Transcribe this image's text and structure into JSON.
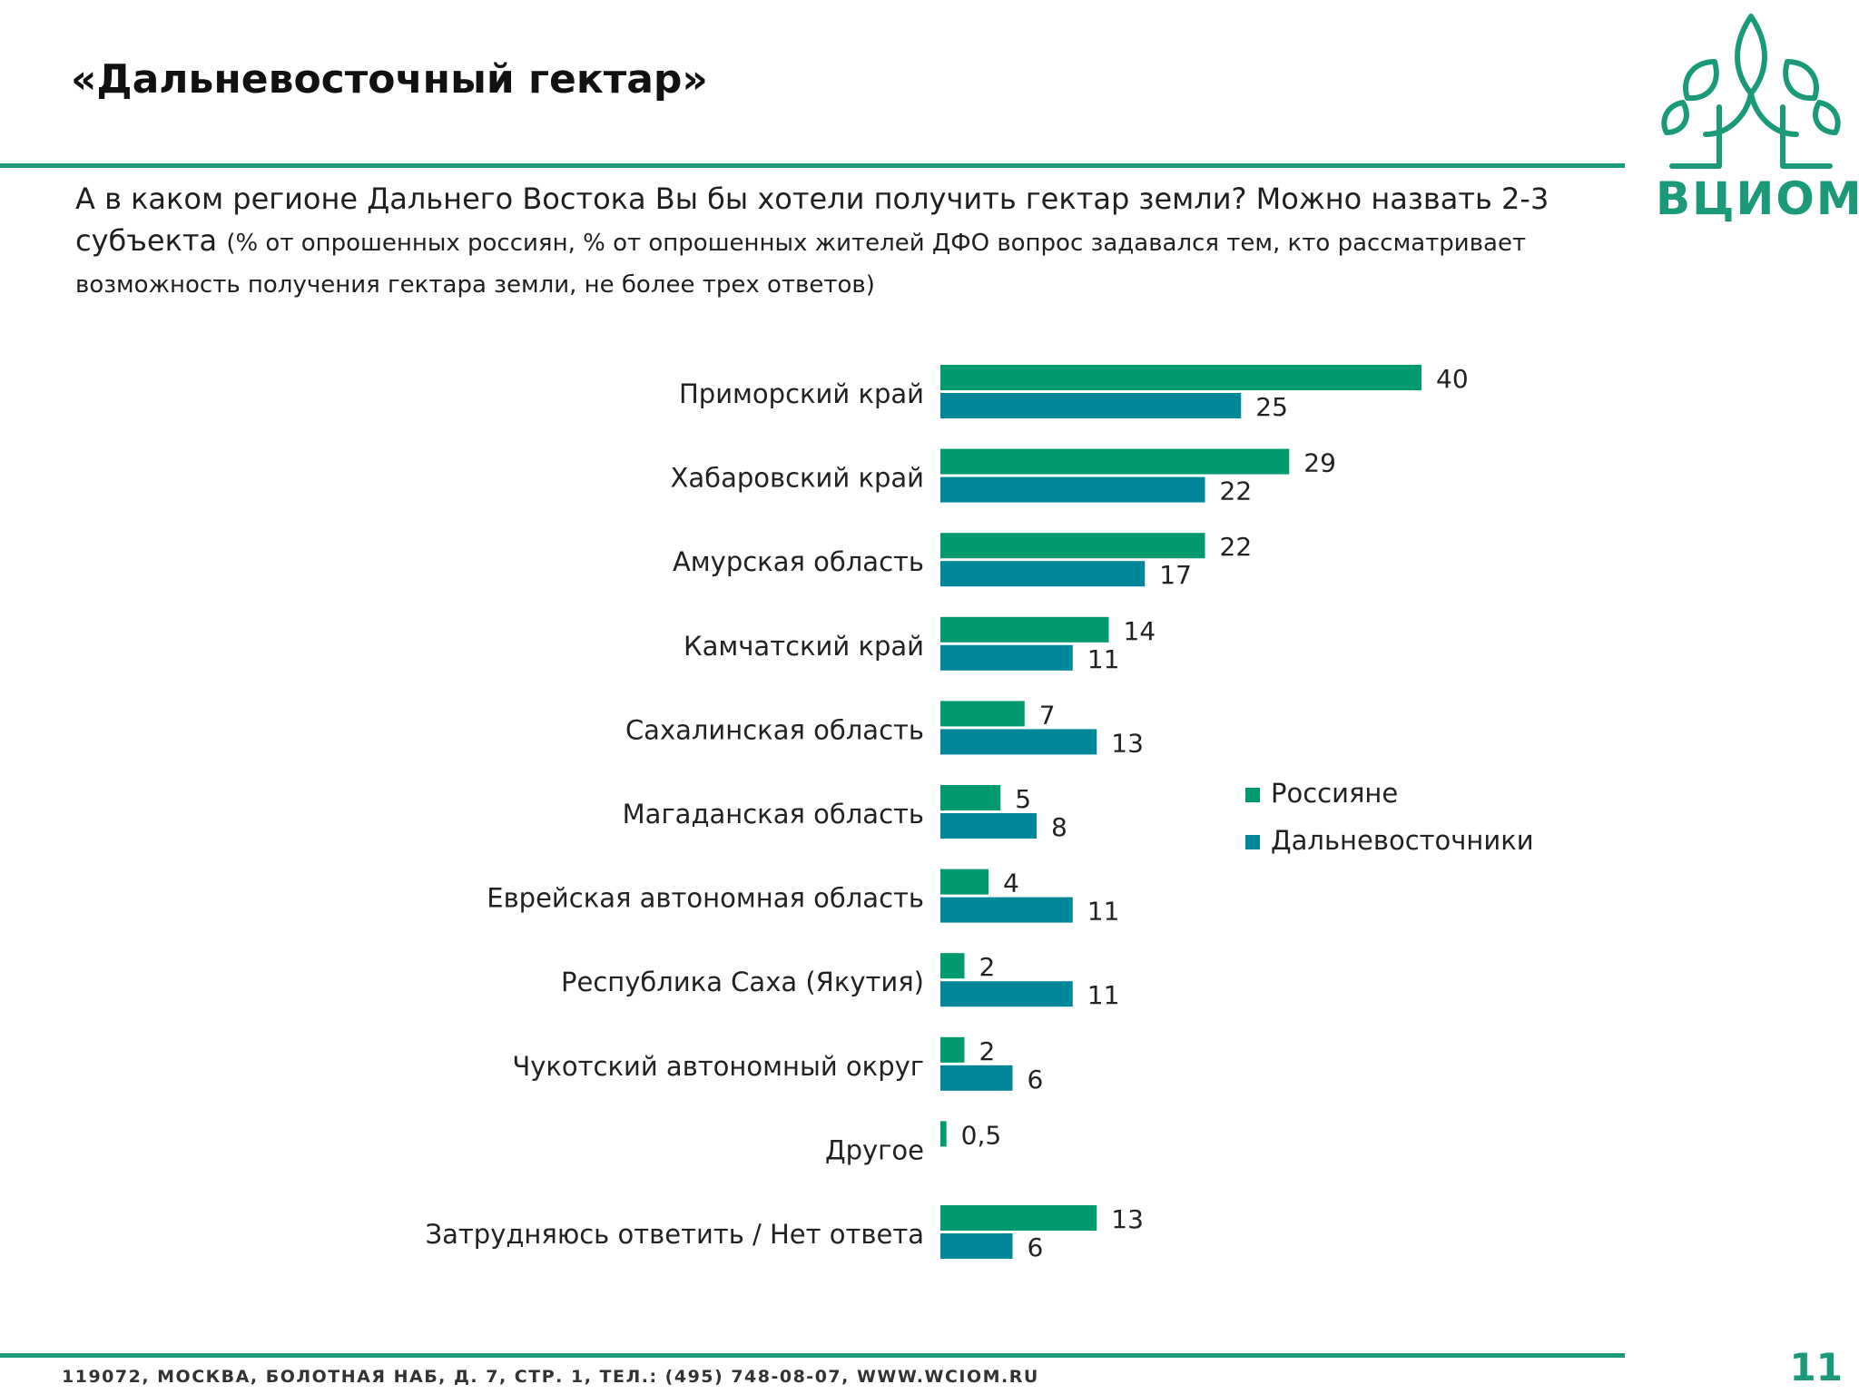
{
  "slide": {
    "title": "«Дальневосточный гектар»",
    "question_main": "А в каком регионе Дальнего Востока Вы бы хотели получить гектар земли? Можно назвать 2-3 субъекта ",
    "question_note": "(% от опрошенных россиян, % от опрошенных жителей ДФО вопрос задавался тем, кто рассматривает возможность получения гектара земли, не более трех ответов)",
    "footer": "119072, МОСКВА, БОЛОТНАЯ НАБ, Д. 7, СТР. 1, ТЕЛ.: (495) 748-08-07,  WWW.WCIOM.RU",
    "page_number": "11"
  },
  "logo": {
    "text": "ВЦИОМ",
    "icon": "tree-leaves-icon"
  },
  "colors": {
    "green": "#009a6e",
    "teal": "#00879a",
    "accent": "#1a9a78"
  },
  "chart_data": {
    "type": "bar",
    "orientation": "horizontal",
    "title": "А в каком регионе Дальнего Востока Вы бы хотели получить гектар земли?",
    "xlim": [
      0,
      40
    ],
    "grid": false,
    "legend_position": "right",
    "categories": [
      "Приморский край",
      "Хабаровский край",
      "Амурская область",
      "Камчатский край",
      "Сахалинская область",
      "Магаданская область",
      "Еврейская автономная область",
      "Республика Саха (Якутия)",
      "Чукотский автономный округ",
      "Другое",
      "Затрудняюсь ответить / Нет ответа"
    ],
    "series": [
      {
        "name": "Россияне",
        "color": "#009a6e",
        "values": [
          40,
          29,
          22,
          14,
          7,
          5,
          4,
          2,
          2,
          0.5,
          13
        ],
        "labels": [
          "40",
          "29",
          "22",
          "14",
          "7",
          "5",
          "4",
          "2",
          "2",
          "0,5",
          "13"
        ]
      },
      {
        "name": "Дальневосточники",
        "color": "#00879a",
        "values": [
          25,
          22,
          17,
          11,
          13,
          8,
          11,
          11,
          6,
          null,
          6
        ],
        "labels": [
          "25",
          "22",
          "17",
          "11",
          "13",
          "8",
          "11",
          "11",
          "6",
          "",
          "6"
        ]
      }
    ]
  }
}
